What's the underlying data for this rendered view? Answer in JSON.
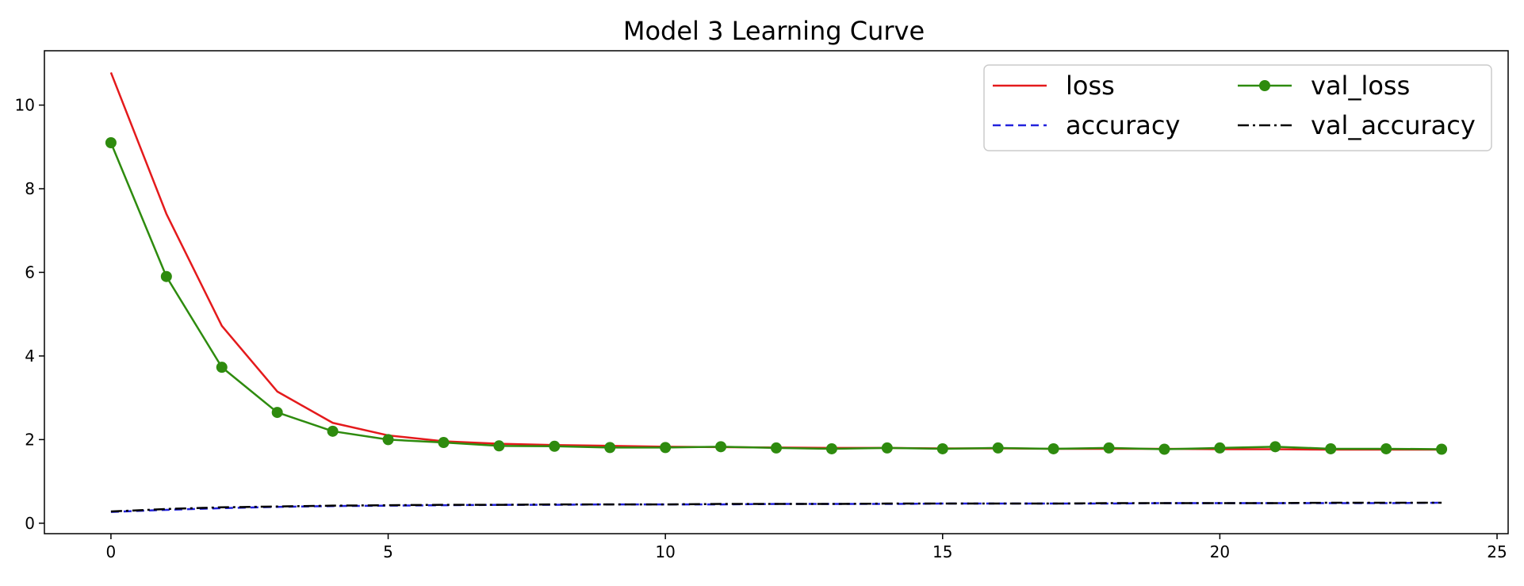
{
  "chart_data": {
    "type": "line",
    "title": "Model 3 Learning Curve",
    "xlabel": "",
    "ylabel": "",
    "xlim": [
      -1.2,
      25.2
    ],
    "ylim": [
      -0.25,
      11.3
    ],
    "xticks": [
      0,
      5,
      10,
      15,
      20,
      25
    ],
    "yticks": [
      0,
      2,
      4,
      6,
      8,
      10
    ],
    "grid": false,
    "legend_position": "top-right",
    "x": [
      0,
      1,
      2,
      3,
      4,
      5,
      6,
      7,
      8,
      9,
      10,
      11,
      12,
      13,
      14,
      15,
      16,
      17,
      18,
      19,
      20,
      21,
      22,
      23,
      24
    ],
    "series": [
      {
        "name": "loss",
        "color": "#e41a1c",
        "style": "solid",
        "marker": "none",
        "values": [
          10.78,
          7.4,
          4.72,
          3.15,
          2.4,
          2.1,
          1.96,
          1.9,
          1.87,
          1.85,
          1.83,
          1.82,
          1.81,
          1.8,
          1.8,
          1.79,
          1.79,
          1.78,
          1.78,
          1.78,
          1.77,
          1.77,
          1.76,
          1.76,
          1.76
        ]
      },
      {
        "name": "val_loss",
        "color": "#2e8b0e",
        "style": "solid",
        "marker": "circle",
        "values": [
          9.1,
          5.9,
          3.73,
          2.65,
          2.2,
          2.0,
          1.93,
          1.85,
          1.84,
          1.81,
          1.81,
          1.83,
          1.8,
          1.78,
          1.8,
          1.78,
          1.8,
          1.78,
          1.8,
          1.77,
          1.8,
          1.83,
          1.78,
          1.78,
          1.77
        ]
      },
      {
        "name": "accuracy",
        "color": "#2222dd",
        "style": "dashed",
        "marker": "none",
        "values": [
          0.27,
          0.32,
          0.36,
          0.39,
          0.41,
          0.42,
          0.43,
          0.44,
          0.44,
          0.45,
          0.45,
          0.45,
          0.46,
          0.46,
          0.46,
          0.47,
          0.47,
          0.47,
          0.47,
          0.48,
          0.48,
          0.48,
          0.48,
          0.48,
          0.49
        ]
      },
      {
        "name": "val_accuracy",
        "color": "#000000",
        "style": "dashdot",
        "marker": "none",
        "values": [
          0.28,
          0.34,
          0.38,
          0.4,
          0.42,
          0.43,
          0.44,
          0.44,
          0.45,
          0.45,
          0.45,
          0.46,
          0.46,
          0.46,
          0.47,
          0.47,
          0.47,
          0.47,
          0.48,
          0.48,
          0.48,
          0.48,
          0.49,
          0.49,
          0.49
        ]
      }
    ]
  }
}
